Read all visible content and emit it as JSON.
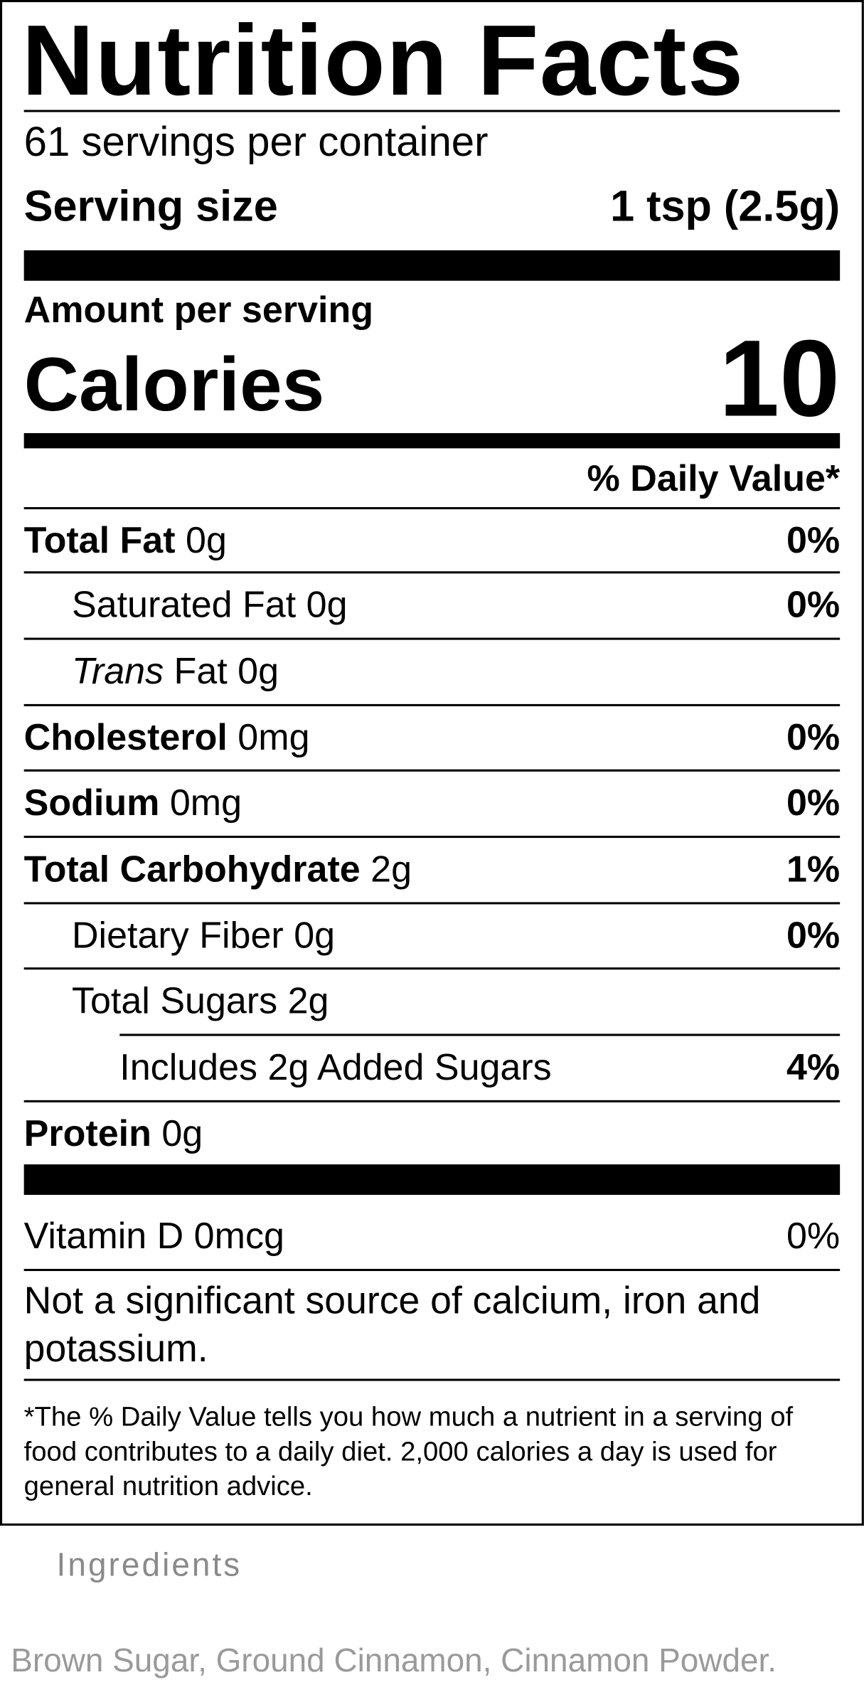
{
  "label": {
    "title": "Nutrition Facts",
    "servings": "61 servings per container",
    "serving_size": {
      "label": "Serving size",
      "value": "1 tsp (2.5g)"
    },
    "amount_per_serving": "Amount per serving",
    "calories": {
      "label": "Calories",
      "value": "10"
    },
    "dv_header": "% Daily Value*",
    "rows": [
      {
        "name": "Total Fat",
        "amount": "0g",
        "dv": "0%"
      },
      {
        "name": "Saturated Fat",
        "amount": "0g",
        "dv": "0%"
      },
      {
        "name_italic": "Trans",
        "name": "Fat",
        "amount": "0g"
      },
      {
        "name": "Cholesterol",
        "amount": "0mg",
        "dv": "0%"
      },
      {
        "name": "Sodium",
        "amount": "0mg",
        "dv": "0%"
      },
      {
        "name": "Total Carbohydrate",
        "amount": "2g",
        "dv": "1%"
      },
      {
        "name": "Dietary Fiber",
        "amount": "0g",
        "dv": "0%"
      },
      {
        "name": "Total Sugars",
        "amount": "2g"
      },
      {
        "name": "Includes",
        "amount": "2g",
        "name_after": "Added Sugars",
        "dv": "4%"
      },
      {
        "name": "Protein",
        "amount": "0g"
      }
    ],
    "vitamin": {
      "name": "Vitamin D",
      "amount": "0mcg",
      "dv": "0%"
    },
    "note": "Not a significant source of calcium, iron and potassium.",
    "footnote": "*The % Daily Value tells you how much a nutrient in a serving of food contributes to a daily diet. 2,000 calories a day is used for general nutrition advice."
  },
  "ingredients": {
    "heading": "Ingredients",
    "text": "Brown Sugar, Ground Cinnamon, Cinnamon Powder."
  }
}
